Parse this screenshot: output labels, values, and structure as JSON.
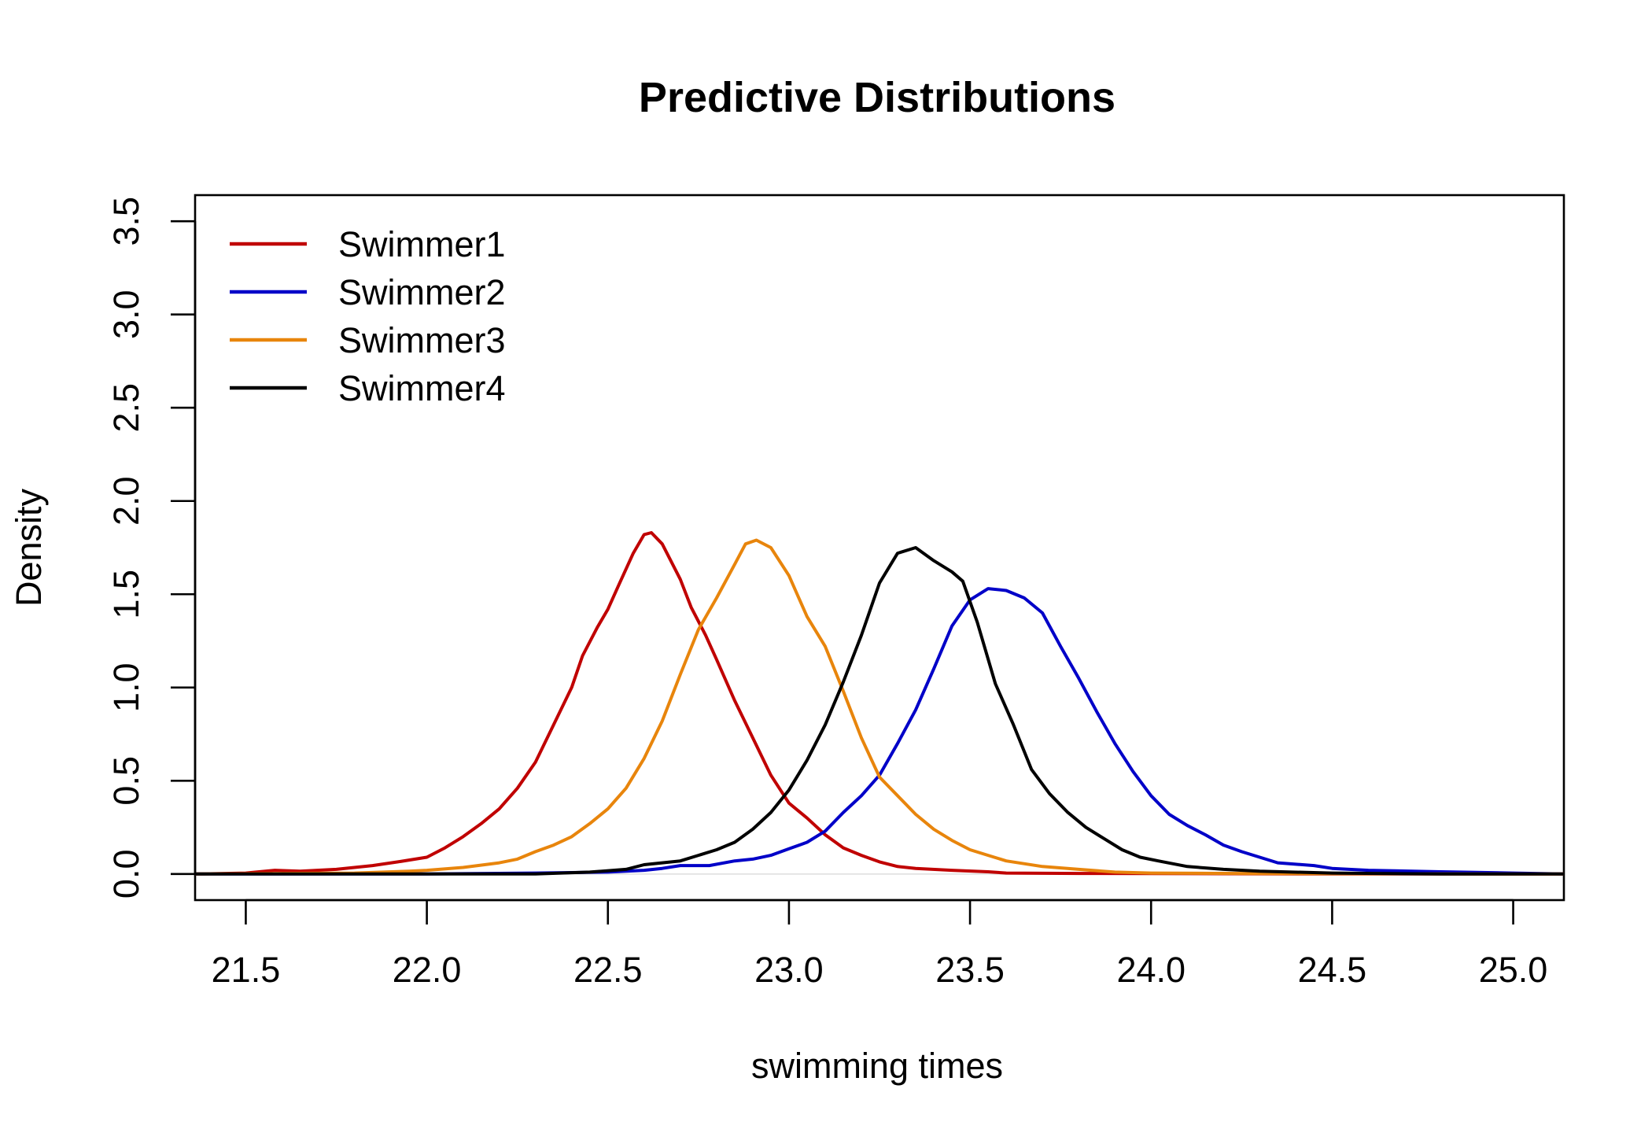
{
  "chart_data": {
    "type": "line",
    "title": "Predictive Distributions",
    "xlabel": "swimming times",
    "ylabel": "Density",
    "xlim": [
      21.36,
      25.14
    ],
    "ylim": [
      -0.14,
      3.64
    ],
    "x_ticks": [
      "21.5",
      "22.0",
      "22.5",
      "23.0",
      "23.5",
      "24.0",
      "24.5",
      "25.0"
    ],
    "y_ticks": [
      "0.0",
      "0.5",
      "1.0",
      "1.5",
      "2.0",
      "2.5",
      "3.0",
      "3.5"
    ],
    "legend_position": "top-left",
    "grid": false,
    "series": [
      {
        "name": "Swimmer1",
        "color": "#c00000",
        "points": [
          [
            21.36,
            0.0
          ],
          [
            21.5,
            0.005
          ],
          [
            21.58,
            0.02
          ],
          [
            21.65,
            0.015
          ],
          [
            21.75,
            0.025
          ],
          [
            21.85,
            0.045
          ],
          [
            21.92,
            0.065
          ],
          [
            22.0,
            0.09
          ],
          [
            22.05,
            0.14
          ],
          [
            22.1,
            0.2
          ],
          [
            22.15,
            0.27
          ],
          [
            22.2,
            0.35
          ],
          [
            22.25,
            0.46
          ],
          [
            22.3,
            0.6
          ],
          [
            22.35,
            0.8
          ],
          [
            22.4,
            1.0
          ],
          [
            22.43,
            1.17
          ],
          [
            22.47,
            1.32
          ],
          [
            22.5,
            1.42
          ],
          [
            22.53,
            1.55
          ],
          [
            22.57,
            1.72
          ],
          [
            22.6,
            1.82
          ],
          [
            22.62,
            1.83
          ],
          [
            22.65,
            1.77
          ],
          [
            22.7,
            1.58
          ],
          [
            22.73,
            1.43
          ],
          [
            22.77,
            1.28
          ],
          [
            22.8,
            1.15
          ],
          [
            22.85,
            0.93
          ],
          [
            22.9,
            0.73
          ],
          [
            22.95,
            0.53
          ],
          [
            23.0,
            0.38
          ],
          [
            23.05,
            0.3
          ],
          [
            23.1,
            0.21
          ],
          [
            23.15,
            0.14
          ],
          [
            23.2,
            0.1
          ],
          [
            23.25,
            0.065
          ],
          [
            23.3,
            0.04
          ],
          [
            23.35,
            0.03
          ],
          [
            23.45,
            0.02
          ],
          [
            23.55,
            0.012
          ],
          [
            23.6,
            0.005
          ],
          [
            23.8,
            0.003
          ],
          [
            24.0,
            0.002
          ],
          [
            24.5,
            0.0
          ],
          [
            25.14,
            0.0
          ]
        ]
      },
      {
        "name": "Swimmer2",
        "color": "#0000c8",
        "points": [
          [
            21.36,
            0.0
          ],
          [
            22.0,
            0.0
          ],
          [
            22.3,
            0.005
          ],
          [
            22.5,
            0.01
          ],
          [
            22.6,
            0.02
          ],
          [
            22.65,
            0.03
          ],
          [
            22.7,
            0.045
          ],
          [
            22.78,
            0.045
          ],
          [
            22.85,
            0.07
          ],
          [
            22.9,
            0.08
          ],
          [
            22.95,
            0.1
          ],
          [
            23.0,
            0.135
          ],
          [
            23.05,
            0.17
          ],
          [
            23.1,
            0.23
          ],
          [
            23.15,
            0.33
          ],
          [
            23.2,
            0.42
          ],
          [
            23.25,
            0.53
          ],
          [
            23.3,
            0.7
          ],
          [
            23.35,
            0.88
          ],
          [
            23.4,
            1.1
          ],
          [
            23.45,
            1.33
          ],
          [
            23.5,
            1.47
          ],
          [
            23.55,
            1.53
          ],
          [
            23.6,
            1.52
          ],
          [
            23.65,
            1.48
          ],
          [
            23.7,
            1.4
          ],
          [
            23.75,
            1.22
          ],
          [
            23.8,
            1.05
          ],
          [
            23.85,
            0.87
          ],
          [
            23.9,
            0.7
          ],
          [
            23.95,
            0.55
          ],
          [
            24.0,
            0.42
          ],
          [
            24.05,
            0.32
          ],
          [
            24.1,
            0.26
          ],
          [
            24.15,
            0.21
          ],
          [
            24.2,
            0.155
          ],
          [
            24.25,
            0.12
          ],
          [
            24.3,
            0.09
          ],
          [
            24.35,
            0.06
          ],
          [
            24.45,
            0.045
          ],
          [
            24.5,
            0.03
          ],
          [
            24.6,
            0.02
          ],
          [
            24.8,
            0.012
          ],
          [
            25.0,
            0.005
          ],
          [
            25.14,
            0.0
          ]
        ]
      },
      {
        "name": "Swimmer3",
        "color": "#e8850c",
        "points": [
          [
            21.36,
            0.0
          ],
          [
            21.8,
            0.005
          ],
          [
            21.95,
            0.015
          ],
          [
            22.0,
            0.02
          ],
          [
            22.1,
            0.035
          ],
          [
            22.2,
            0.06
          ],
          [
            22.25,
            0.08
          ],
          [
            22.3,
            0.12
          ],
          [
            22.35,
            0.155
          ],
          [
            22.4,
            0.2
          ],
          [
            22.45,
            0.27
          ],
          [
            22.5,
            0.35
          ],
          [
            22.55,
            0.46
          ],
          [
            22.6,
            0.62
          ],
          [
            22.65,
            0.82
          ],
          [
            22.7,
            1.07
          ],
          [
            22.75,
            1.31
          ],
          [
            22.8,
            1.48
          ],
          [
            22.85,
            1.66
          ],
          [
            22.88,
            1.77
          ],
          [
            22.91,
            1.79
          ],
          [
            22.95,
            1.75
          ],
          [
            23.0,
            1.6
          ],
          [
            23.05,
            1.38
          ],
          [
            23.1,
            1.22
          ],
          [
            23.15,
            0.98
          ],
          [
            23.2,
            0.73
          ],
          [
            23.25,
            0.52
          ],
          [
            23.3,
            0.42
          ],
          [
            23.35,
            0.32
          ],
          [
            23.4,
            0.24
          ],
          [
            23.45,
            0.18
          ],
          [
            23.5,
            0.13
          ],
          [
            23.55,
            0.1
          ],
          [
            23.6,
            0.07
          ],
          [
            23.7,
            0.04
          ],
          [
            23.8,
            0.025
          ],
          [
            23.9,
            0.01
          ],
          [
            24.0,
            0.005
          ],
          [
            24.3,
            0.002
          ],
          [
            25.14,
            0.0
          ]
        ]
      },
      {
        "name": "Swimmer4",
        "color": "#000000",
        "points": [
          [
            21.36,
            0.0
          ],
          [
            22.3,
            0.0
          ],
          [
            22.45,
            0.01
          ],
          [
            22.55,
            0.025
          ],
          [
            22.6,
            0.05
          ],
          [
            22.7,
            0.07
          ],
          [
            22.75,
            0.1
          ],
          [
            22.8,
            0.13
          ],
          [
            22.85,
            0.17
          ],
          [
            22.9,
            0.24
          ],
          [
            22.95,
            0.33
          ],
          [
            23.0,
            0.45
          ],
          [
            23.05,
            0.61
          ],
          [
            23.1,
            0.8
          ],
          [
            23.15,
            1.03
          ],
          [
            23.2,
            1.28
          ],
          [
            23.25,
            1.56
          ],
          [
            23.3,
            1.72
          ],
          [
            23.35,
            1.75
          ],
          [
            23.4,
            1.68
          ],
          [
            23.45,
            1.62
          ],
          [
            23.48,
            1.57
          ],
          [
            23.52,
            1.35
          ],
          [
            23.57,
            1.02
          ],
          [
            23.62,
            0.8
          ],
          [
            23.67,
            0.56
          ],
          [
            23.72,
            0.43
          ],
          [
            23.77,
            0.33
          ],
          [
            23.82,
            0.25
          ],
          [
            23.87,
            0.19
          ],
          [
            23.92,
            0.13
          ],
          [
            23.97,
            0.09
          ],
          [
            24.02,
            0.07
          ],
          [
            24.1,
            0.04
          ],
          [
            24.2,
            0.025
          ],
          [
            24.3,
            0.015
          ],
          [
            24.5,
            0.005
          ],
          [
            24.8,
            0.0
          ],
          [
            25.14,
            0.0
          ]
        ]
      }
    ]
  }
}
